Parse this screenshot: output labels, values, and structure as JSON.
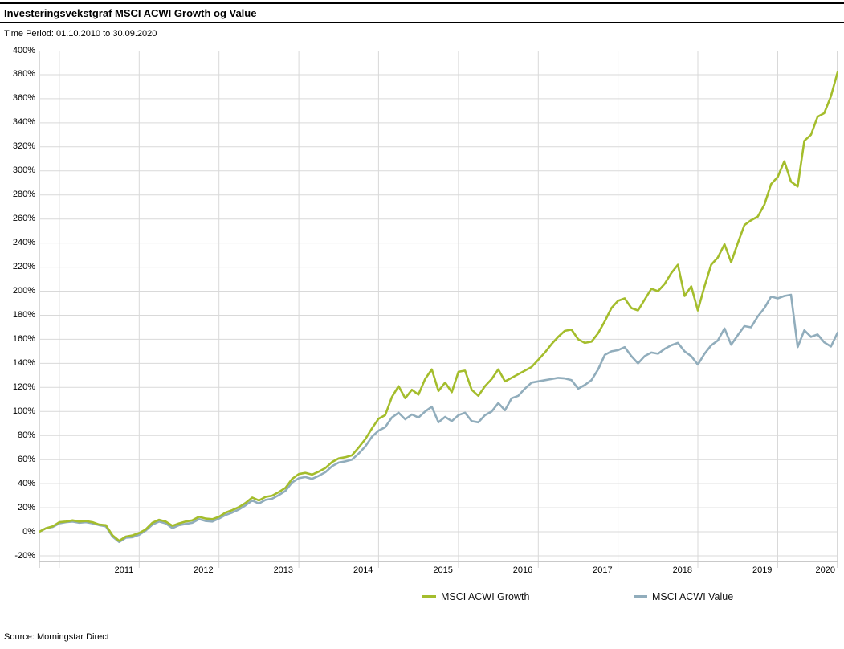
{
  "header": {
    "title": "Investeringsvekstgraf MSCI ACWI Growth og Value",
    "time_period": "Time Period: 01.10.2010 to 30.09.2020"
  },
  "source": "Source: Morningstar Direct",
  "chart_data": {
    "type": "line",
    "title": "Investeringsvekstgraf MSCI ACWI Growth og Value",
    "time_period": {
      "start": "01.10.2010",
      "end": "30.09.2020"
    },
    "x_unit": "month",
    "x_tick_labels": [
      "2011",
      "2012",
      "2013",
      "2014",
      "2015",
      "2016",
      "2017",
      "2018",
      "2019",
      "2020"
    ],
    "y_unit": "%",
    "ylim": [
      -20,
      400
    ],
    "y_tick_step": 20,
    "grid": true,
    "legend_position": "bottom",
    "grid_color": "#d9d9d9",
    "series": [
      {
        "name": "MSCI ACWI Value",
        "color": "#91adbc",
        "values": [
          0,
          3,
          4,
          7,
          8,
          8.5,
          7.5,
          8,
          7,
          5.5,
          4.5,
          -4,
          -8.5,
          -5,
          -4.5,
          -2.5,
          1,
          6,
          8.5,
          7,
          3,
          5.5,
          6.5,
          7.5,
          10.5,
          9,
          8.5,
          11,
          14,
          16,
          18.5,
          22,
          26,
          23.5,
          26.5,
          27.5,
          30.5,
          34,
          41,
          44.5,
          45.5,
          44,
          46.5,
          49.5,
          54.5,
          57.5,
          58.5,
          60,
          65,
          71,
          79,
          84,
          87,
          95,
          99,
          93.5,
          97.5,
          95,
          100,
          104,
          91,
          95.5,
          92,
          97,
          99,
          92,
          91,
          97,
          100,
          107,
          101,
          111,
          113,
          119,
          124,
          125,
          126,
          127,
          128,
          127.5,
          126,
          119,
          122,
          126,
          135,
          147,
          150,
          151,
          153.5,
          146,
          140,
          146,
          149,
          148,
          152,
          155,
          157,
          150,
          146,
          139,
          148,
          155,
          159,
          169,
          155.5,
          163.5,
          171,
          170,
          179,
          186,
          195.5,
          194,
          196,
          197,
          153.5,
          167.5,
          162,
          164,
          157.5,
          154,
          165.5
        ]
      },
      {
        "name": "MSCI ACWI Growth",
        "color": "#a4bd2c",
        "values": [
          0,
          3,
          4.5,
          8,
          8.5,
          9.5,
          8.5,
          9,
          8,
          6,
          5.5,
          -3,
          -7.5,
          -4,
          -3,
          -1,
          2,
          7.5,
          10,
          8.5,
          5,
          7,
          8.5,
          9.5,
          12.5,
          11,
          10.5,
          12.5,
          16,
          18,
          20.5,
          24,
          28.5,
          26,
          29,
          30,
          33,
          36.5,
          44,
          48,
          49,
          47.5,
          50,
          53,
          58,
          61,
          62,
          63.5,
          70,
          77,
          86,
          94,
          97,
          112,
          121,
          111,
          118,
          114,
          127,
          135,
          117,
          124,
          116,
          133,
          134,
          118,
          113,
          121,
          127,
          135,
          125,
          128,
          131,
          134,
          137,
          143,
          149,
          156,
          162,
          167,
          168,
          160,
          157,
          158,
          165,
          175,
          186,
          192,
          194,
          186,
          184,
          193,
          202,
          200,
          206,
          215,
          222,
          196,
          204,
          184,
          204,
          222,
          228,
          239,
          224,
          240,
          255,
          259,
          262,
          272,
          289,
          295,
          308,
          291,
          287,
          325,
          330,
          345,
          348,
          362,
          382
        ]
      }
    ],
    "legend_order": [
      "MSCI ACWI Growth",
      "MSCI ACWI Value"
    ]
  }
}
